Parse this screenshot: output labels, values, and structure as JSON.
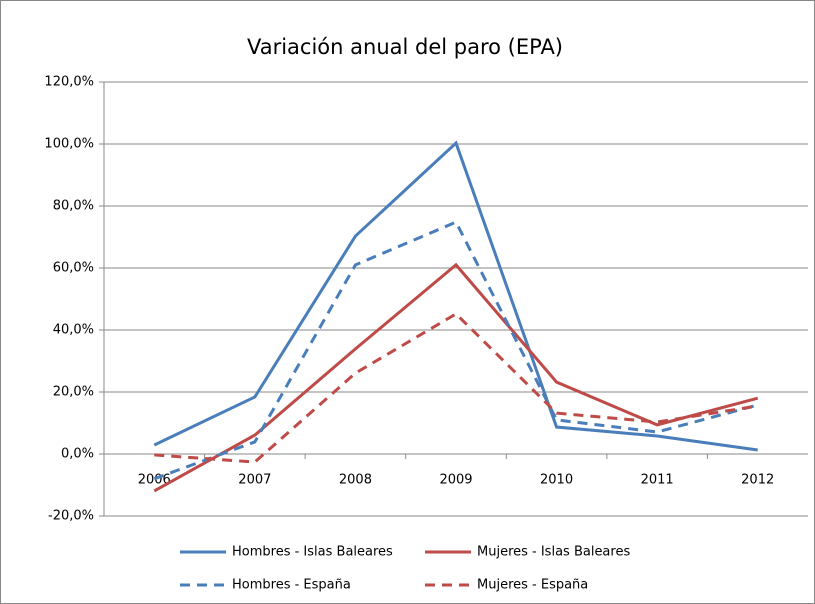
{
  "chart_data": {
    "type": "line",
    "title": "Variación anual del paro (EPA)",
    "categories": [
      "2006",
      "2007",
      "2008",
      "2009",
      "2010",
      "2011",
      "2012"
    ],
    "series": [
      {
        "name": "Hombres - Islas Baleares",
        "color": "#4a7ebb",
        "dash": false,
        "values": [
          2.9,
          18.4,
          70.3,
          100.3,
          8.7,
          5.8,
          1.3
        ]
      },
      {
        "name": "Mujeres - Islas Baleares",
        "color": "#be4b48",
        "dash": false,
        "values": [
          -11.9,
          6.1,
          33.9,
          61.0,
          23.2,
          9.4,
          18.0
        ]
      },
      {
        "name": "Hombres - España",
        "color": "#4a7ebb",
        "dash": true,
        "values": [
          -8.0,
          3.9,
          61.0,
          74.8,
          11.0,
          7.1,
          15.8
        ]
      },
      {
        "name": "Mujeres - España",
        "color": "#be4b48",
        "dash": true,
        "values": [
          -0.3,
          -2.6,
          26.1,
          45.2,
          13.2,
          10.3,
          15.5
        ]
      }
    ],
    "ylim": [
      -20,
      120
    ],
    "yticks": [
      {
        "value": -20,
        "label": "-20,0%"
      },
      {
        "value": 0,
        "label": "0,0%"
      },
      {
        "value": 20,
        "label": "20,0%"
      },
      {
        "value": 40,
        "label": "40,0%"
      },
      {
        "value": 60,
        "label": "60,0%"
      },
      {
        "value": 80,
        "label": "80,0%"
      },
      {
        "value": 100,
        "label": "100,0%"
      },
      {
        "value": 120,
        "label": "120,0%"
      }
    ],
    "grid": true,
    "legend": "bottom"
  }
}
